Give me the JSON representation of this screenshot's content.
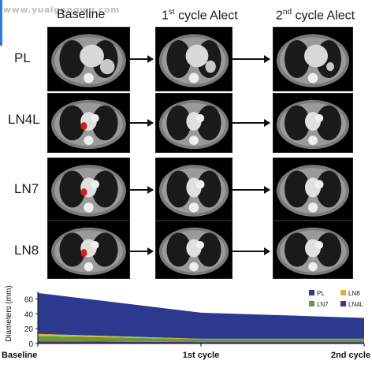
{
  "watermark": "www.yuaigongwu.com",
  "columns": {
    "baseline": "Baseline",
    "cycle1_num": "1",
    "cycle1_sup": "st",
    "cycle1_text": " cycle Alect",
    "cycle2_num": "2",
    "cycle2_sup": "nd",
    "cycle2_text": " cycle Alect"
  },
  "rows": [
    "PL",
    "LN4L",
    "LN7",
    "LN8"
  ],
  "colors": {
    "PL": "#2b3a8f",
    "LN8": "#e6b02e",
    "LN7": "#5e9c3c",
    "LN4L": "#5a2b80",
    "lesion": "#d21e1e",
    "accent": "#2f7bd6"
  },
  "chart_data": {
    "type": "area",
    "stacked": true,
    "categories": [
      "Baseline",
      "1st cycle",
      "2nd cycle"
    ],
    "ylabel": "Diameters (mm)",
    "ylim": [
      0,
      70
    ],
    "yticks": [
      0,
      20,
      40,
      60
    ],
    "series": [
      {
        "name": "LN4L",
        "values": [
          3,
          2,
          2
        ]
      },
      {
        "name": "LN7",
        "values": [
          7,
          4,
          4
        ]
      },
      {
        "name": "LN8",
        "values": [
          3,
          0.5,
          0.5
        ]
      },
      {
        "name": "PL",
        "values": [
          55,
          35,
          28
        ]
      }
    ],
    "legend_order": [
      "PL",
      "LN8",
      "LN7",
      "LN4L"
    ],
    "legend_position": "top-right"
  }
}
